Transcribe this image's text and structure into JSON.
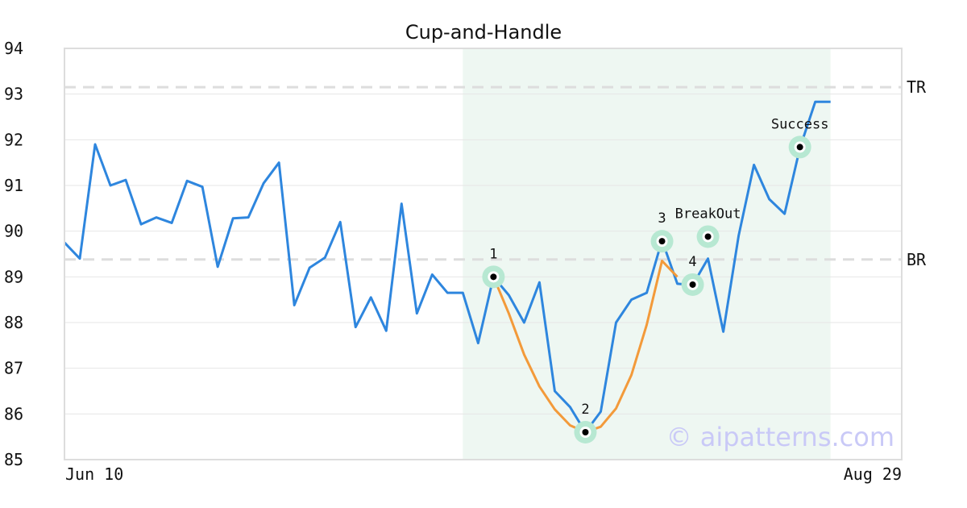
{
  "chart_data": {
    "type": "line",
    "title": "Cup-and-Handle",
    "x_labels": [
      "Jun 10",
      "Aug 29"
    ],
    "ylim": [
      85,
      94
    ],
    "yticks": [
      85,
      86,
      87,
      88,
      89,
      90,
      91,
      92,
      93,
      94
    ],
    "grid": true,
    "series": [
      {
        "color": "#2e86de",
        "values": [
          89.75,
          89.4,
          91.9,
          91.0,
          91.12,
          90.15,
          90.3,
          90.18,
          91.1,
          90.97,
          89.22,
          90.28,
          90.3,
          91.05,
          91.5,
          88.38,
          89.2,
          89.42,
          90.2,
          87.9,
          88.55,
          87.82,
          90.6,
          88.2,
          89.05,
          88.65,
          88.65,
          87.55,
          89.0,
          88.6,
          88.0,
          88.88,
          86.5,
          86.15,
          85.6,
          86.05,
          88.0,
          88.5,
          88.65,
          89.8,
          88.85,
          88.82,
          89.4,
          87.8,
          89.9,
          91.45,
          90.7,
          90.38,
          91.82,
          92.83,
          92.83
        ]
      },
      {
        "color": "#f39a3a",
        "role": "pattern-fit",
        "x_index": [
          28,
          29,
          30,
          31,
          32,
          33,
          34,
          35,
          36,
          37,
          38,
          39,
          40
        ],
        "values": [
          89.0,
          88.2,
          87.3,
          86.6,
          86.1,
          85.75,
          85.6,
          85.72,
          86.12,
          86.85,
          87.95,
          89.35,
          89.0
        ]
      }
    ],
    "reference_lines": [
      {
        "label": "TR",
        "y": 93.15,
        "color": "#dddddd"
      },
      {
        "label": "BR",
        "y": 89.38,
        "color": "#dddddd"
      }
    ],
    "highlight_region": {
      "x_start_index": 26,
      "x_end_index": 50,
      "color": "#eef7f2"
    },
    "points": [
      {
        "label": "1",
        "x_index": 28,
        "y": 89.0
      },
      {
        "label": "2",
        "x_index": 34,
        "y": 85.6
      },
      {
        "label": "3",
        "x_index": 39,
        "y": 89.78
      },
      {
        "label": "4",
        "x_index": 41,
        "y": 88.83
      },
      {
        "label": "BreakOut",
        "x_index": 42,
        "y": 89.88
      },
      {
        "label": "Success",
        "x_index": 48,
        "y": 91.84
      }
    ],
    "watermark": "© aipatterns.com"
  }
}
